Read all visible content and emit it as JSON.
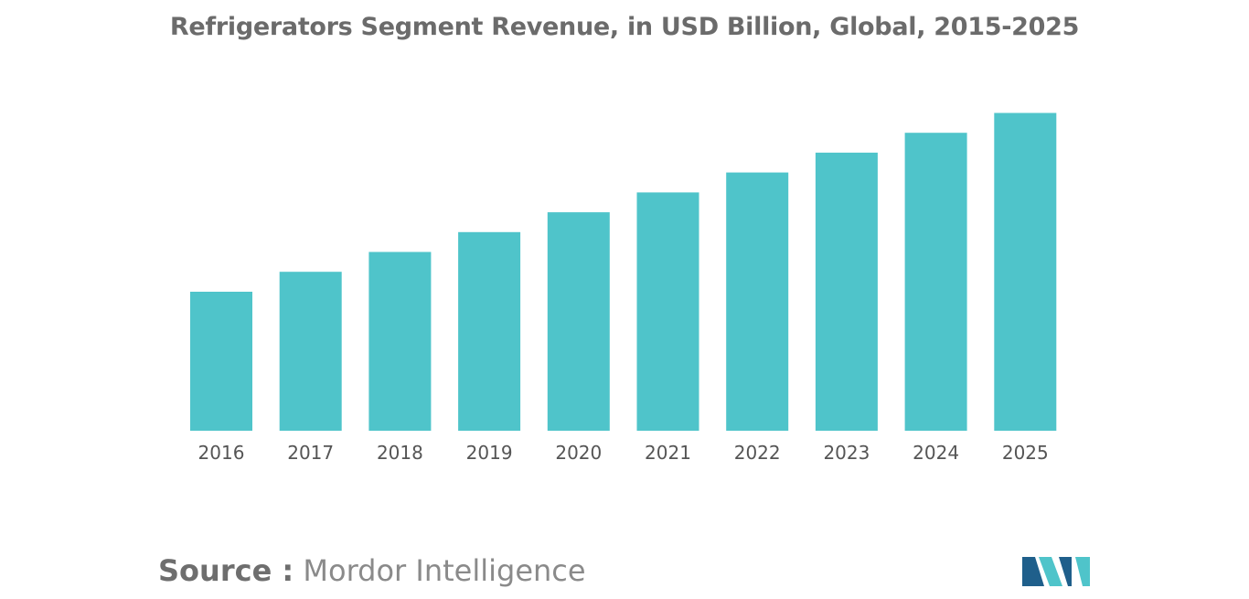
{
  "chart_data": {
    "type": "bar",
    "title": "Refrigerators Segment Revenue, in USD Billion, Global, 2015-2025",
    "categories": [
      "2016",
      "2017",
      "2018",
      "2019",
      "2020",
      "2021",
      "2022",
      "2023",
      "2024",
      "2025"
    ],
    "values": [
      42,
      48,
      54,
      60,
      66,
      72,
      78,
      84,
      90,
      96
    ],
    "ylim": [
      0,
      100
    ],
    "xlabel": "",
    "ylabel": "",
    "grid": false,
    "bar_color": "#4fc4ca"
  },
  "source": {
    "prefix": "Source :",
    "name": "Mordor Intelligence"
  },
  "logo": {
    "icon": "mordor-intelligence-logo",
    "colors": [
      "#1f5f8b",
      "#4fc4ca"
    ]
  }
}
